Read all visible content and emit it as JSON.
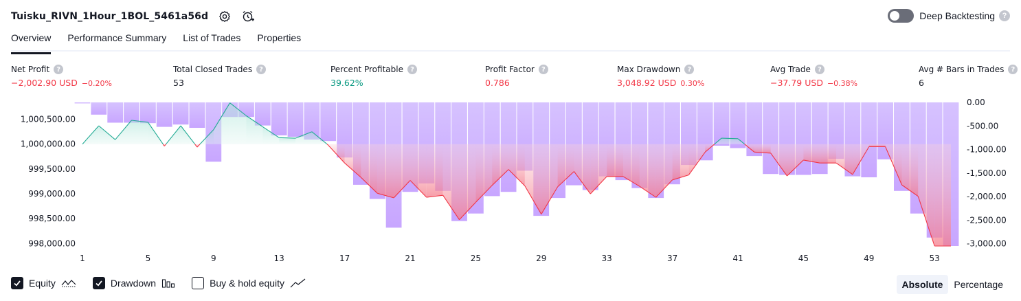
{
  "header": {
    "title": "Tuisku_RIVN_1Hour_1BOL_5461a56d",
    "settings_icon": "gear-icon",
    "alert_icon": "alarm-clock-plus-icon",
    "deep_backtesting_label": "Deep Backtesting",
    "deep_backtesting_on": false,
    "help_icon": "question-icon"
  },
  "tabs": [
    {
      "label": "Overview",
      "active": true
    },
    {
      "label": "Performance Summary",
      "active": false
    },
    {
      "label": "List of Trades",
      "active": false
    },
    {
      "label": "Properties",
      "active": false
    }
  ],
  "stats": {
    "net_profit": {
      "label": "Net Profit",
      "value": "−2,002.90 USD",
      "pct": "−0.20%"
    },
    "total_closed_trades": {
      "label": "Total Closed Trades",
      "value": "53"
    },
    "percent_profitable": {
      "label": "Percent Profitable",
      "value": "39.62%"
    },
    "profit_factor": {
      "label": "Profit Factor",
      "value": "0.786"
    },
    "max_drawdown": {
      "label": "Max Drawdown",
      "value": "3,048.92 USD",
      "pct": "0.30%"
    },
    "avg_trade": {
      "label": "Avg Trade",
      "value": "−37.79 USD",
      "pct": "−0.38%"
    },
    "avg_bars": {
      "label": "Avg # Bars in Trades",
      "value": "6"
    }
  },
  "chart_data": {
    "type": "line",
    "left_axis_ticks": [
      "1,000,500.00",
      "1,000,000.00",
      "999,500.00",
      "999,000.00",
      "998,500.00",
      "998,000.00"
    ],
    "left_axis_values": [
      1000500,
      1000000,
      999500,
      999000,
      998500,
      998000
    ],
    "right_axis_ticks": [
      "0.00",
      "-500.00",
      "-1,000.00",
      "-1,500.00",
      "-2,000.00",
      "-2,500.00",
      "-3,000.00"
    ],
    "right_axis_values": [
      0,
      -500,
      -1000,
      -1500,
      -2000,
      -2500,
      -3000
    ],
    "x_ticks": [
      "1",
      "5",
      "9",
      "13",
      "17",
      "21",
      "25",
      "29",
      "33",
      "37",
      "41",
      "45",
      "49",
      "53"
    ],
    "x_tick_values": [
      1,
      5,
      9,
      13,
      17,
      21,
      25,
      29,
      33,
      37,
      41,
      45,
      49,
      53
    ],
    "equity_ylim": [
      997950,
      1000840
    ],
    "drawdown_ylim": [
      -3050,
      0
    ],
    "baseline": 1000000,
    "equity": [
      1000000,
      1000370,
      1000090,
      1000480,
      1000440,
      999960,
      1000370,
      999940,
      1000290,
      1000830,
      1000570,
      1000350,
      1000130,
      1000120,
      1000250,
      999980,
      999620,
      999330,
      999010,
      998920,
      999270,
      998930,
      998970,
      998480,
      998830,
      999170,
      999490,
      999160,
      998590,
      999140,
      999450,
      999000,
      999350,
      999350,
      999150,
      998930,
      999280,
      999380,
      999840,
      1000120,
      1000110,
      999840,
      999820,
      999360,
      999680,
      999620,
      999620,
      999390,
      999950,
      999950,
      999180,
      998950,
      997950,
      997950
    ],
    "drawdown": [
      -20,
      -260,
      -430,
      -430,
      -440,
      -520,
      -470,
      -540,
      -1260,
      -310,
      -310,
      -490,
      -700,
      -730,
      -790,
      -820,
      -1170,
      -1750,
      -2050,
      -2660,
      -1900,
      -1720,
      -1880,
      -2520,
      -2360,
      -1990,
      -1900,
      -1450,
      -2410,
      -2030,
      -1760,
      -1860,
      -1570,
      -1650,
      -1820,
      -2030,
      -1740,
      -1330,
      -1230,
      -920,
      -970,
      -1140,
      -1520,
      -1540,
      -1540,
      -1520,
      -1200,
      -1570,
      -1590,
      -1210,
      -1880,
      -2360,
      -2870,
      -3050
    ],
    "colors": {
      "equity_up_line": "#22ab94",
      "equity_down_line": "#f23645",
      "drawdown_bar": "#b388ff"
    }
  },
  "legend": {
    "equity": {
      "label": "Equity",
      "checked": true
    },
    "drawdown": {
      "label": "Drawdown",
      "checked": true
    },
    "buy_hold": {
      "label": "Buy & hold equity",
      "checked": false
    }
  },
  "modes": [
    {
      "label": "Absolute",
      "active": true
    },
    {
      "label": "Percentage",
      "active": false
    }
  ]
}
